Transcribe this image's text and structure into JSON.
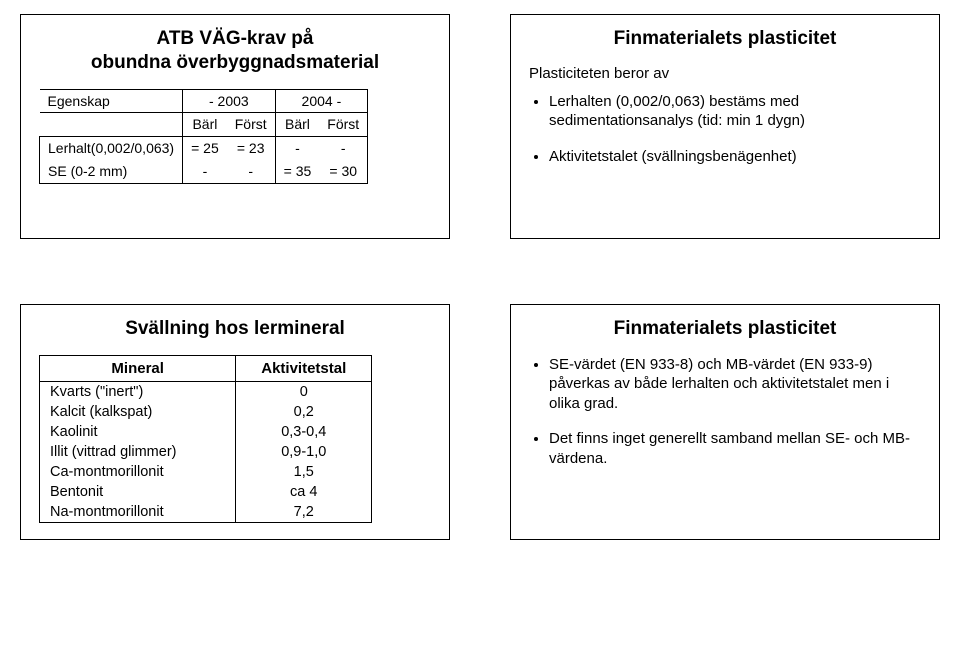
{
  "colors": {
    "text": "#000000",
    "background": "#ffffff",
    "border": "#000000"
  },
  "fontsizes": {
    "title": 19,
    "body": 15,
    "table": 14
  },
  "panel_tl": {
    "title_line1": "ATB VÄG-krav  på",
    "title_line2": "obundna överbyggnadsmaterial",
    "header": {
      "blank": "",
      "y1": "- 2003",
      "y2": "2004 -",
      "b": "Bärl",
      "f": "Först"
    },
    "rows": [
      {
        "label": "Egenskap"
      },
      {
        "label": "Lerhalt(0,002/0,063)",
        "c1": "= 25",
        "c2": "= 23",
        "c3": "-",
        "c4": "-"
      },
      {
        "label": "SE (0-2 mm)",
        "c1": "-",
        "c2": "-",
        "c3": "= 35",
        "c4": "= 30"
      }
    ]
  },
  "panel_tr": {
    "title": "Finmaterialets plasticitet",
    "intro": "Plasticiteten beror av",
    "bullets": [
      "Lerhalten (0,002/0,063) bestäms med sedimentationsanalys (tid: min 1 dygn)",
      "Aktivitetstalet (svällningsbenägenhet)"
    ]
  },
  "panel_bl": {
    "title": "Svällning hos lermineral",
    "col1": "Mineral",
    "col2": "Aktivitetstal",
    "rows": [
      {
        "name": "Kvarts (\"inert\")",
        "val": "0"
      },
      {
        "name": "Kalcit (kalkspat)",
        "val": "0,2"
      },
      {
        "name": "Kaolinit",
        "val": "0,3-0,4"
      },
      {
        "name": "Illit (vittrad glimmer)",
        "val": "0,9-1,0"
      },
      {
        "name": "Ca-montmorillonit",
        "val": "1,5"
      },
      {
        "name": "Bentonit",
        "val": "ca 4"
      },
      {
        "name": "Na-montmorillonit",
        "val": "7,2"
      }
    ]
  },
  "panel_br": {
    "title": "Finmaterialets plasticitet",
    "bullets": [
      "SE-värdet (EN 933-8) och MB-värdet (EN 933-9) påverkas av både lerhalten och aktivitetstalet men i olika grad.",
      "Det finns inget generellt samband mellan SE- och MB-värdena."
    ]
  }
}
